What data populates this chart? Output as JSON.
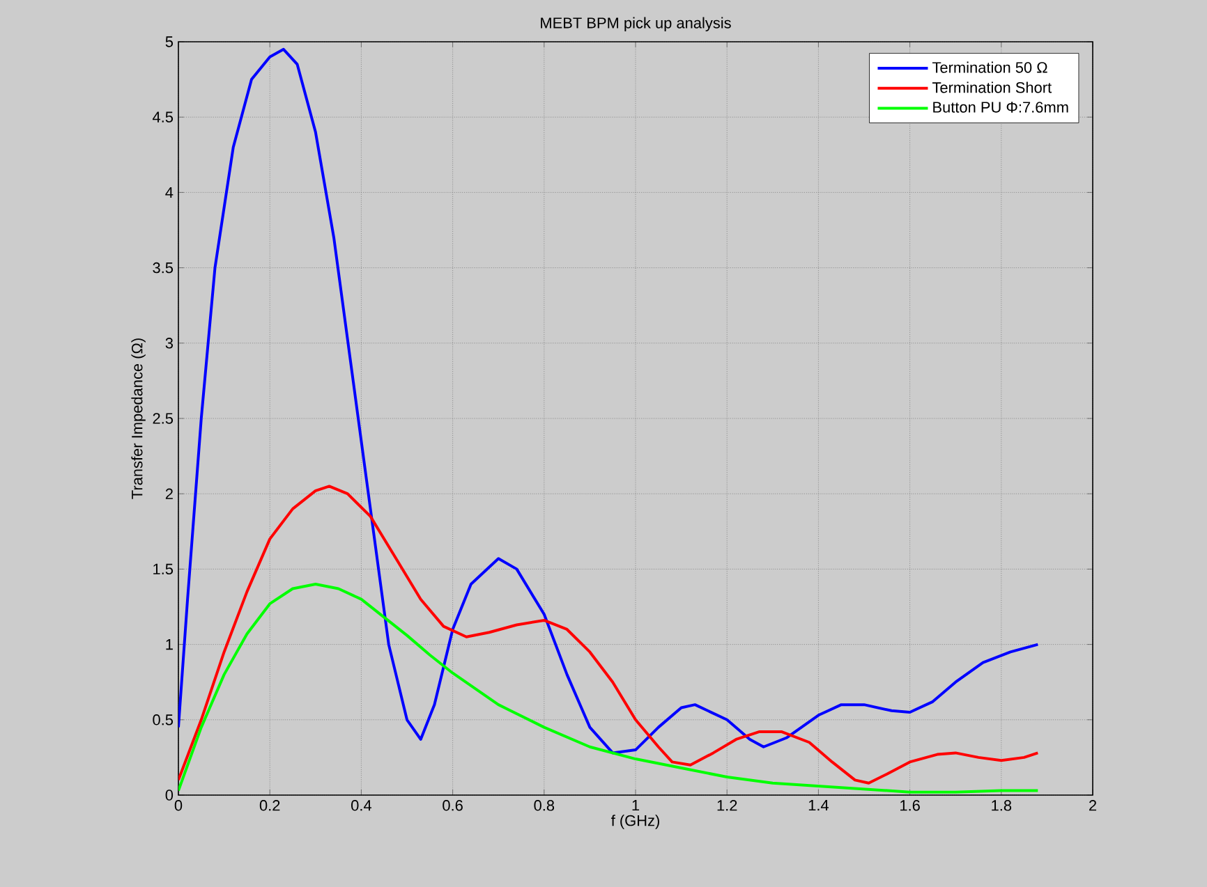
{
  "chart_data": {
    "type": "line",
    "title": "MEBT BPM pick up analysis",
    "xlabel": "f (GHz)",
    "ylabel": "Transfer Impedance (Ω)",
    "xlim": [
      0,
      2
    ],
    "ylim": [
      0,
      5
    ],
    "xticks": [
      0,
      0.2,
      0.4,
      0.6,
      0.8,
      1,
      1.2,
      1.4,
      1.6,
      1.8,
      2
    ],
    "yticks": [
      0,
      0.5,
      1,
      1.5,
      2,
      2.5,
      3,
      3.5,
      4,
      4.5,
      5
    ],
    "grid": true,
    "legend": "top right",
    "marker": "none",
    "line_style": "solid",
    "series": [
      {
        "name": "Termination 50 Ω",
        "color": "#0000ff",
        "x": [
          0,
          0.02,
          0.05,
          0.08,
          0.12,
          0.16,
          0.2,
          0.23,
          0.26,
          0.3,
          0.34,
          0.38,
          0.42,
          0.46,
          0.5,
          0.53,
          0.56,
          0.6,
          0.64,
          0.7,
          0.74,
          0.8,
          0.85,
          0.9,
          0.95,
          1.0,
          1.05,
          1.1,
          1.13,
          1.2,
          1.25,
          1.28,
          1.33,
          1.4,
          1.45,
          1.5,
          1.56,
          1.6,
          1.65,
          1.7,
          1.76,
          1.82,
          1.88
        ],
        "values": [
          0.45,
          1.3,
          2.5,
          3.5,
          4.3,
          4.75,
          4.9,
          4.95,
          4.85,
          4.4,
          3.7,
          2.8,
          1.9,
          1.0,
          0.5,
          0.37,
          0.6,
          1.1,
          1.4,
          1.57,
          1.5,
          1.2,
          0.8,
          0.45,
          0.28,
          0.3,
          0.45,
          0.58,
          0.6,
          0.5,
          0.37,
          0.32,
          0.38,
          0.53,
          0.6,
          0.6,
          0.56,
          0.55,
          0.62,
          0.75,
          0.88,
          0.95,
          1.0
        ]
      },
      {
        "name": "Termination Short",
        "color": "#ff0000",
        "x": [
          0,
          0.05,
          0.1,
          0.15,
          0.2,
          0.25,
          0.3,
          0.33,
          0.37,
          0.42,
          0.48,
          0.53,
          0.58,
          0.63,
          0.68,
          0.74,
          0.8,
          0.85,
          0.9,
          0.95,
          1.0,
          1.05,
          1.08,
          1.12,
          1.17,
          1.22,
          1.27,
          1.32,
          1.38,
          1.43,
          1.48,
          1.51,
          1.55,
          1.6,
          1.66,
          1.7,
          1.75,
          1.8,
          1.85,
          1.88
        ],
        "values": [
          0.1,
          0.5,
          0.95,
          1.35,
          1.7,
          1.9,
          2.02,
          2.05,
          2.0,
          1.85,
          1.55,
          1.3,
          1.12,
          1.05,
          1.08,
          1.13,
          1.16,
          1.1,
          0.95,
          0.75,
          0.5,
          0.32,
          0.22,
          0.2,
          0.28,
          0.37,
          0.42,
          0.42,
          0.35,
          0.22,
          0.1,
          0.08,
          0.14,
          0.22,
          0.27,
          0.28,
          0.25,
          0.23,
          0.25,
          0.28
        ]
      },
      {
        "name": "Button PU Φ:7.6mm",
        "color": "#00ff00",
        "x": [
          0,
          0.05,
          0.1,
          0.15,
          0.2,
          0.25,
          0.3,
          0.35,
          0.4,
          0.45,
          0.5,
          0.55,
          0.6,
          0.7,
          0.8,
          0.9,
          1.0,
          1.1,
          1.2,
          1.3,
          1.4,
          1.5,
          1.6,
          1.7,
          1.8,
          1.88
        ],
        "values": [
          0.03,
          0.45,
          0.8,
          1.07,
          1.27,
          1.37,
          1.4,
          1.37,
          1.3,
          1.18,
          1.06,
          0.93,
          0.81,
          0.6,
          0.45,
          0.32,
          0.24,
          0.18,
          0.12,
          0.08,
          0.06,
          0.04,
          0.02,
          0.02,
          0.03,
          0.03
        ]
      }
    ]
  }
}
